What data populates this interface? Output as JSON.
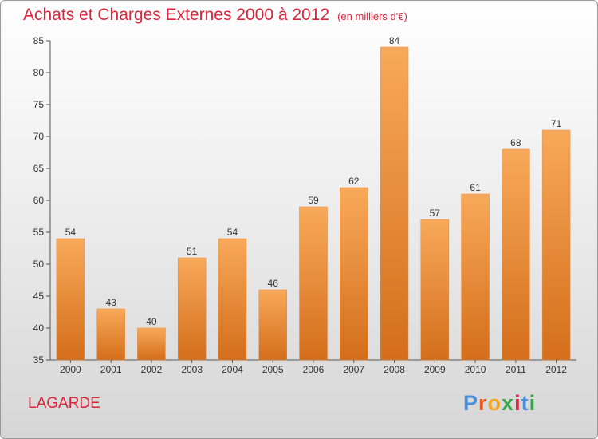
{
  "title": "Achats et Charges Externes 2000 à 2012",
  "subtitle": "(en milliers d'€)",
  "commune": "LAGARDE",
  "brand": {
    "letters": [
      "P",
      "r",
      "o",
      "x",
      "i",
      "t",
      "i"
    ],
    "colors": [
      "#4a90d9",
      "#e85a1e",
      "#f2a81d",
      "#3aa64a",
      "#d9263b",
      "#4a90d9",
      "#3aa64a"
    ]
  },
  "colors": {
    "title": "#d9263b",
    "bar_top": "#f8a95a",
    "bar_bottom": "#d46e1a",
    "axis": "#555555"
  },
  "chart_data": {
    "type": "bar",
    "categories": [
      "2000",
      "2001",
      "2002",
      "2003",
      "2004",
      "2005",
      "2006",
      "2007",
      "2008",
      "2009",
      "2010",
      "2011",
      "2012"
    ],
    "values": [
      54,
      43,
      40,
      51,
      54,
      46,
      59,
      62,
      84,
      57,
      61,
      68,
      71
    ],
    "yticks": [
      35,
      40,
      45,
      50,
      55,
      60,
      65,
      70,
      75,
      80,
      85
    ],
    "ylim": [
      35,
      85
    ],
    "grid": false,
    "xlabel": "",
    "ylabel": ""
  }
}
